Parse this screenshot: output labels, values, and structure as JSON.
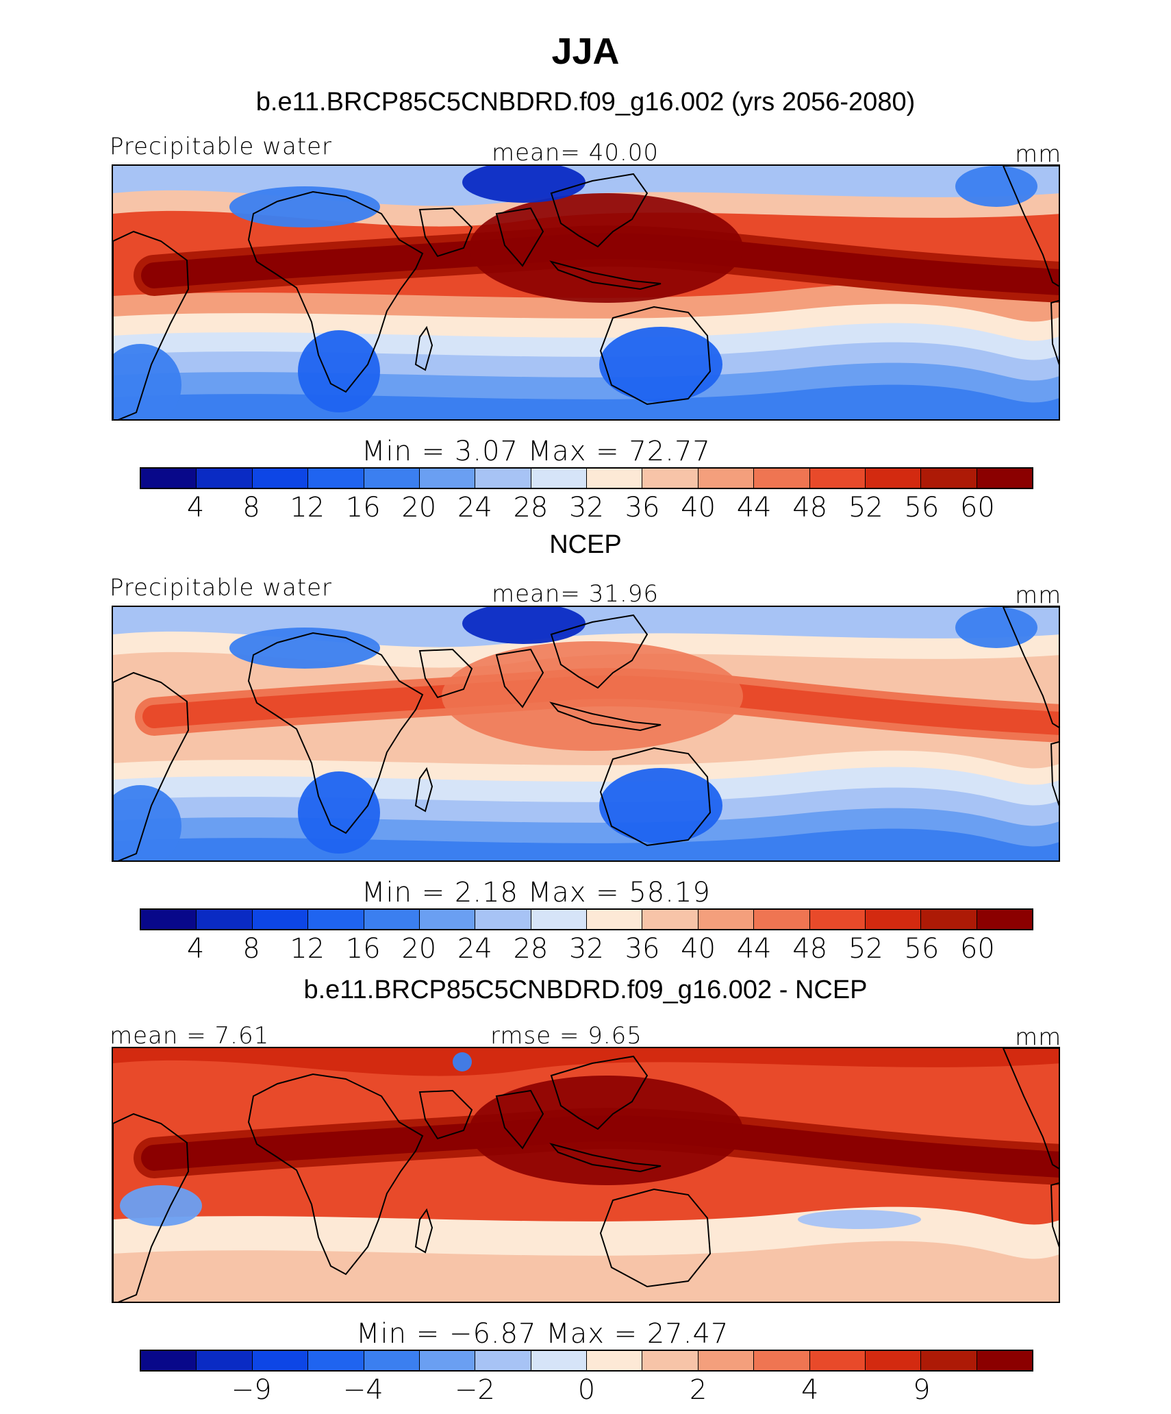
{
  "title": "JJA",
  "colors": [
    "#08088a",
    "#0a2bc4",
    "#0d46e6",
    "#1f64f0",
    "#3b7ff0",
    "#6a9ff2",
    "#a7c3f5",
    "#d6e4f8",
    "#fde9d6",
    "#f7c4a8",
    "#f49f7c",
    "#ef7552",
    "#e84a2a",
    "#d32a10",
    "#ad1a06",
    "#8b0000"
  ],
  "panels": [
    {
      "subtitle": "b.e11.BRCP85C5CNBDRD.f09_g16.002 (yrs 2056-2080)",
      "left_label": "Precipitable water",
      "center_label": "mean=   40.00",
      "units": "mm",
      "minmax": "Min  =     3.07  Max  =    72.77",
      "ticks": [
        "4",
        "8",
        "12",
        "16",
        "20",
        "24",
        "28",
        "32",
        "36",
        "40",
        "44",
        "48",
        "52",
        "56",
        "60"
      ],
      "variant": "model"
    },
    {
      "subtitle": "NCEP",
      "left_label": "Precipitable water",
      "center_label": "mean=   31.96",
      "units": "mm",
      "minmax": "Min  =     2.18  Max  =    58.19",
      "ticks": [
        "4",
        "8",
        "12",
        "16",
        "20",
        "24",
        "28",
        "32",
        "36",
        "40",
        "44",
        "48",
        "52",
        "56",
        "60"
      ],
      "variant": "obs"
    },
    {
      "subtitle": "b.e11.BRCP85C5CNBDRD.f09_g16.002 - NCEP",
      "left_label": "mean  =     7.61",
      "center_label": "rmse  =     9.65",
      "units": "mm",
      "minmax": "Min  =   −6.87  Max  =    27.47",
      "ticks": [
        "−9",
        "−4",
        "−2",
        "0",
        "2",
        "4",
        "9"
      ],
      "variant": "diff"
    }
  ]
}
